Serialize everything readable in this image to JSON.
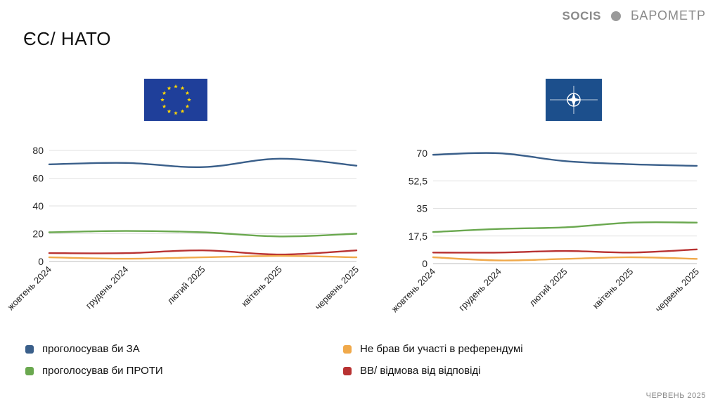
{
  "page": {
    "title": "ЄС/ НАТО",
    "brand_left": "SOCIS",
    "brand_right": "БАРОМЕТР",
    "footer": "ЧЕРВЕНЬ 2025"
  },
  "colors": {
    "za": "#3a5f8a",
    "proty": "#6aa84f",
    "ne_brav": "#f0a94a",
    "vv": "#b83232",
    "grid": "#e2e2e2",
    "eu_flag": "#1f3f9a",
    "nato_flag": "#1c4f8c",
    "star": "#ffd700"
  },
  "legend": [
    {
      "label": "проголосував би ЗА",
      "color_key": "za"
    },
    {
      "label": "Не брав би участі в референдумі",
      "color_key": "ne_brav"
    },
    {
      "label": "проголосував би ПРОТИ",
      "color_key": "proty"
    },
    {
      "label": "ВВ/ відмова від відповіді",
      "color_key": "vv"
    }
  ],
  "chart_data": [
    {
      "type": "line",
      "title": "ЄС",
      "categories": [
        "жовтень 2024",
        "грудень 2024",
        "лютий 2025",
        "квітень 2025",
        "червень 2025"
      ],
      "ylim": [
        0,
        80
      ],
      "yticks": [
        0,
        20,
        40,
        60,
        80
      ],
      "ytick_labels": [
        "0",
        "20",
        "40",
        "60",
        "80"
      ],
      "series": [
        {
          "name": "проголосував би ЗА",
          "color_key": "za",
          "values": [
            70,
            71,
            68,
            74,
            69
          ]
        },
        {
          "name": "проголосував би ПРОТИ",
          "color_key": "proty",
          "values": [
            21,
            22,
            21,
            18,
            20
          ]
        },
        {
          "name": "ВВ/ відмова від відповіді",
          "color_key": "vv",
          "values": [
            6,
            6,
            8,
            5,
            8
          ]
        },
        {
          "name": "Не брав би участі в референдумі",
          "color_key": "ne_brav",
          "values": [
            3,
            2,
            3,
            4,
            3
          ]
        }
      ]
    },
    {
      "type": "line",
      "title": "НАТО",
      "categories": [
        "жовтень 2024",
        "грудень 2024",
        "лютий 2025",
        "квітень 2025",
        "червень 2025"
      ],
      "ylim": [
        0,
        70
      ],
      "yticks": [
        0,
        17.5,
        35,
        52.5,
        70
      ],
      "ytick_labels": [
        "0",
        "17,5",
        "35",
        "52,5",
        "70"
      ],
      "series": [
        {
          "name": "проголосував би ЗА",
          "color_key": "za",
          "values": [
            69,
            70,
            65,
            63,
            62
          ]
        },
        {
          "name": "проголосував би ПРОТИ",
          "color_key": "proty",
          "values": [
            20,
            22,
            23,
            26,
            26
          ]
        },
        {
          "name": "ВВ/ відмова від відповіді",
          "color_key": "vv",
          "values": [
            7,
            7,
            8,
            7,
            9
          ]
        },
        {
          "name": "Не брав би участі в референдумі",
          "color_key": "ne_brav",
          "values": [
            4,
            2,
            3,
            4,
            3
          ]
        }
      ]
    }
  ]
}
